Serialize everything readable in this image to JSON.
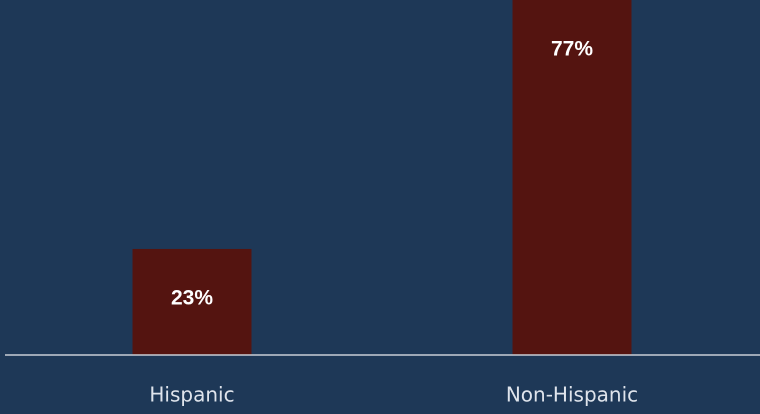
{
  "chart_data": {
    "type": "bar",
    "categories": [
      "Hispanic",
      "Non-Hispanic"
    ],
    "values": [
      23,
      77
    ],
    "value_labels": [
      "23%",
      "77%"
    ],
    "color": "#541410"
  }
}
